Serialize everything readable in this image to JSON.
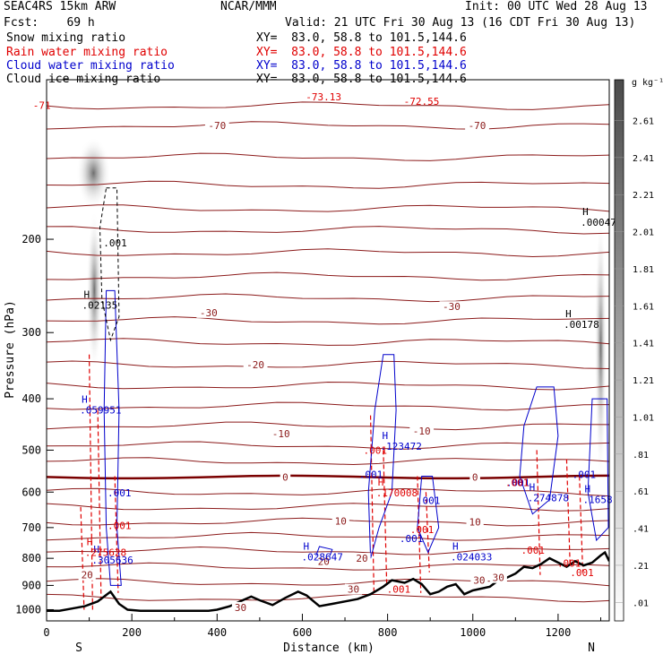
{
  "header": {
    "model": "SEAC4RS 15km ARW",
    "forecast": "Fcst:    69 h",
    "org": "NCAR/MMM",
    "init": "Init: 00 UTC Wed 28 Aug 13",
    "valid": "Valid: 21 UTC Fri 30 Aug 13 (16 CDT Fri 30 Aug 13)"
  },
  "fields": [
    {
      "label": "Snow mixing ratio",
      "xy": "XY=  83.0, 58.8 to 101.5,144.6",
      "color": "#000000"
    },
    {
      "label": "Rain water mixing ratio",
      "xy": "XY=  83.0, 58.8 to 101.5,144.6",
      "color": "#e00000"
    },
    {
      "label": "Cloud water mixing ratio",
      "xy": "XY=  83.0, 58.8 to 101.5,144.6",
      "color": "#0000cc"
    },
    {
      "label": "Cloud ice mixing ratio",
      "xy": "XY=  83.0, 58.8 to 101.5,144.6",
      "color": "#000000"
    }
  ],
  "chart_data": {
    "type": "cross-section",
    "xlabel": "Distance (km)",
    "ylabel": "Pressure (hPa)",
    "xlim": [
      0,
      1320
    ],
    "ylim": [
      1050,
      100
    ],
    "x_ticks": [
      "0",
      "200",
      "400",
      "600",
      "800",
      "1000",
      "1200"
    ],
    "y_ticks": [
      "200",
      "300",
      "400",
      "500",
      "600",
      "700",
      "800",
      "900",
      "1000"
    ],
    "y_scale": "log",
    "endpoint_labels": [
      "S",
      "N"
    ],
    "colorbar": {
      "unit": "g kg⁻¹",
      "labels": [
        ".01",
        ".21",
        ".41",
        ".61",
        ".81",
        "1.01",
        "1.21",
        "1.41",
        "1.61",
        "1.81",
        "2.01",
        "2.21",
        "2.41",
        "2.61"
      ]
    },
    "temperature_labels": [
      {
        "text": "-70",
        "x": 400,
        "p": 122
      },
      {
        "text": "-70",
        "x": 1010,
        "p": 122
      },
      {
        "text": "-30",
        "x": 380,
        "p": 275
      },
      {
        "text": "-30",
        "x": 950,
        "p": 268
      },
      {
        "text": "-20",
        "x": 490,
        "p": 345
      },
      {
        "text": "-10",
        "x": 550,
        "p": 465
      },
      {
        "text": "-10",
        "x": 880,
        "p": 460
      },
      {
        "text": "0",
        "x": 560,
        "p": 562
      },
      {
        "text": "0",
        "x": 1005,
        "p": 562
      },
      {
        "text": "10",
        "x": 690,
        "p": 680
      },
      {
        "text": "10",
        "x": 1005,
        "p": 683
      },
      {
        "text": "20",
        "x": 95,
        "p": 860
      },
      {
        "text": "20",
        "x": 650,
        "p": 810
      },
      {
        "text": "20",
        "x": 740,
        "p": 800
      },
      {
        "text": "30",
        "x": 720,
        "p": 915
      },
      {
        "text": "30",
        "x": 1015,
        "p": 880
      },
      {
        "text": "30",
        "x": 1060,
        "p": 870
      },
      {
        "text": "30",
        "x": 455,
        "p": 990
      }
    ],
    "extrema_labels": [
      {
        "mark": "H",
        "value": ".00047",
        "x": 1295,
        "p": 183,
        "color": "#000000"
      },
      {
        "mark": "H",
        "value": ".00178",
        "x": 1255,
        "p": 285,
        "color": "#000000"
      },
      {
        "mark": "H",
        "value": ".02135",
        "x": 125,
        "p": 262,
        "color": "#000000"
      },
      {
        "mark": "",
        "value": ".001",
        "x": 175,
        "p": 200,
        "color": "#000000"
      },
      {
        "mark": "H",
        "value": ".059951",
        "x": 120,
        "p": 413,
        "color": "#0000cc"
      },
      {
        "mark": "H",
        "value": ".123472",
        "x": 825,
        "p": 484,
        "color": "#0000cc"
      },
      {
        "mark": "H",
        "value": ".028647",
        "x": 640,
        "p": 783,
        "color": "#0000cc"
      },
      {
        "mark": "H",
        "value": ".024033",
        "x": 990,
        "p": 783,
        "color": "#0000cc"
      },
      {
        "mark": "H",
        "value": ".274878",
        "x": 1170,
        "p": 605,
        "color": "#0000cc"
      },
      {
        "mark": "H",
        "value": ".1658",
        "x": 1300,
        "p": 610,
        "color": "#0000cc"
      },
      {
        "mark": "H",
        "value": ".305636",
        "x": 148,
        "p": 793,
        "color": "#0000cc"
      },
      {
        "mark": "",
        "value": ".001",
        "x": 185,
        "p": 592,
        "color": "#0000cc"
      },
      {
        "mark": "",
        "value": ".001",
        "x": 910,
        "p": 612,
        "color": "#0000cc"
      },
      {
        "mark": "",
        "value": ".001",
        "x": 870,
        "p": 723,
        "color": "#0000cc"
      },
      {
        "mark": "",
        "value": ".001",
        "x": 1275,
        "p": 547,
        "color": "#0000cc"
      },
      {
        "mark": "",
        "value": ".001",
        "x": 1120,
        "p": 567,
        "color": "#0000cc"
      },
      {
        "mark": "",
        "value": ".001",
        "x": 775,
        "p": 547,
        "color": "#0000cc"
      },
      {
        "mark": "H",
        "value": ".275628",
        "x": 132,
        "p": 768,
        "color": "#e00000"
      },
      {
        "mark": "H",
        "value": ".170008",
        "x": 815,
        "p": 592,
        "color": "#e00000"
      },
      {
        "mark": "",
        "value": ".001",
        "x": 185,
        "p": 683,
        "color": "#e00000"
      },
      {
        "mark": "",
        "value": ".001",
        "x": 895,
        "p": 695,
        "color": "#e00000"
      },
      {
        "mark": "",
        "value": ".001",
        "x": 785,
        "p": 492,
        "color": "#e00000"
      },
      {
        "mark": "",
        "value": ".001",
        "x": 1155,
        "p": 760,
        "color": "#e00000"
      },
      {
        "mark": "",
        "value": ".001",
        "x": 1240,
        "p": 805,
        "color": "#e00000"
      },
      {
        "mark": "",
        "value": ".001",
        "x": 1270,
        "p": 838,
        "color": "#e00000"
      },
      {
        "mark": "",
        "value": ".001",
        "x": 840,
        "p": 900,
        "color": "#e00000"
      },
      {
        "mark": "",
        "value": ".001",
        "x": 1118,
        "p": 567,
        "color": "#e00000"
      },
      {
        "mark": "",
        "value": "-71",
        "x": 10,
        "p": 110,
        "color": "#e00000"
      },
      {
        "mark": "",
        "value": "-73.13",
        "x": 650,
        "p": 106,
        "color": "#e00000"
      },
      {
        "mark": "",
        "value": "-72.55",
        "x": 880,
        "p": 108,
        "color": "#e00000"
      }
    ],
    "terrain_profile": {
      "x": [
        0,
        30,
        60,
        90,
        120,
        150,
        170,
        190,
        220,
        300,
        380,
        400,
        430,
        460,
        480,
        500,
        530,
        560,
        590,
        610,
        640,
        670,
        700,
        730,
        760,
        790,
        810,
        840,
        860,
        880,
        900,
        920,
        940,
        960,
        980,
        1000,
        1040,
        1060,
        1080,
        1100,
        1120,
        1140,
        1160,
        1180,
        1200,
        1220,
        1240,
        1260,
        1280,
        1300,
        1310,
        1320
      ],
      "p": [
        1005,
        1005,
        995,
        985,
        965,
        925,
        975,
        1000,
        1005,
        1005,
        1005,
        1000,
        985,
        960,
        945,
        960,
        980,
        950,
        925,
        940,
        985,
        975,
        965,
        955,
        935,
        905,
        880,
        890,
        875,
        895,
        935,
        925,
        905,
        895,
        935,
        920,
        905,
        880,
        870,
        855,
        830,
        835,
        820,
        800,
        815,
        830,
        810,
        825,
        815,
        790,
        780,
        810
      ]
    },
    "thick_isotherm_p": 562
  }
}
